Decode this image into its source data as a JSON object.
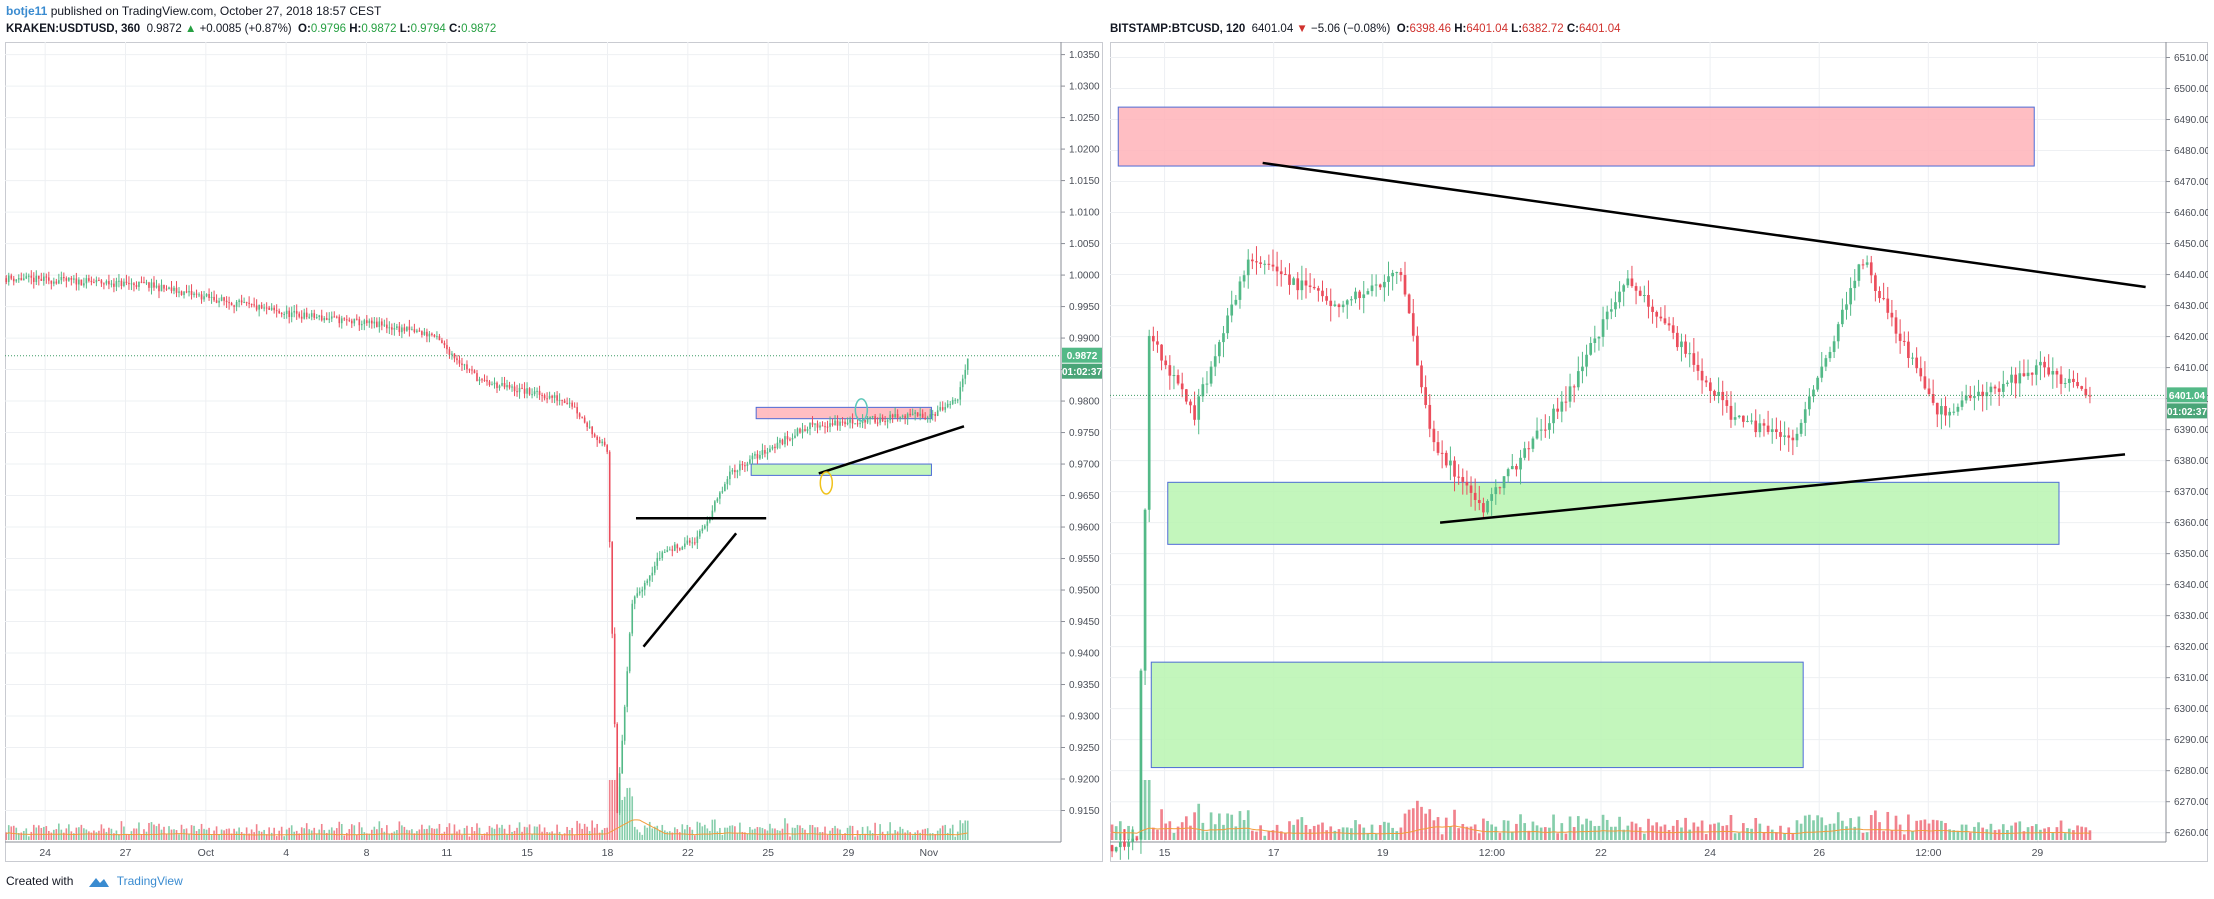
{
  "header": {
    "author": "botje11",
    "published_text": " published on TradingView.com, October 27, 2018 18:57 CEST"
  },
  "left": {
    "symbol": "KRAKEN:USDTUSD, 360",
    "last": "0.9872",
    "change_arrow": "▲",
    "change": "+0.0085 (+0.87%)",
    "o_label": "O:",
    "o": "0.9796",
    "h_label": "H:",
    "h": "0.9872",
    "l_label": "L:",
    "l": "0.9794",
    "c_label": "C:",
    "c": "0.9872",
    "price_badge": "0.9872",
    "time_badge": "01:02:37"
  },
  "right": {
    "symbol": "BITSTAMP:BTCUSD, 120",
    "last": "6401.04",
    "change_arrow": "▼",
    "change": "−5.06 (−0.08%)",
    "o_label": "O:",
    "o": "6398.46",
    "h_label": "H:",
    "h": "6401.04",
    "l_label": "L:",
    "l": "6382.72",
    "c_label": "C:",
    "c": "6401.04",
    "price_badge": "6401.04",
    "time_badge": "01:02:37"
  },
  "footer": {
    "created_with": "Created with",
    "brand": "TradingView"
  },
  "colors": {
    "up": "#53b987",
    "down": "#eb4d5c",
    "zone_red": "#ffb3b8",
    "zone_green": "#b8f5b0",
    "accent": "#3a8bd0"
  },
  "chart_data": [
    {
      "type": "candlestick",
      "title": "KRAKEN:USDTUSD, 360",
      "x_ticks": [
        "24",
        "27",
        "Oct",
        "4",
        "8",
        "11",
        "15",
        "18",
        "22",
        "25",
        "29",
        "Nov"
      ],
      "y_ticks": [
        "1.0350",
        "1.0300",
        "1.0250",
        "1.0200",
        "1.0150",
        "1.0100",
        "1.0050",
        "1.0000",
        "0.9950",
        "0.9900",
        "0.9850",
        "0.9800",
        "0.9750",
        "0.9700",
        "0.9650",
        "0.9600",
        "0.9550",
        "0.9500",
        "0.9450",
        "0.9400",
        "0.9350",
        "0.9300",
        "0.9250",
        "0.9200",
        "0.9150"
      ],
      "ylim": [
        0.91,
        1.037
      ],
      "grid": true,
      "close_segments": [
        {
          "from": 0,
          "to": 55,
          "start": 0.9995,
          "end": 0.9985
        },
        {
          "from": 55,
          "to": 110,
          "start": 0.9985,
          "end": 0.994
        },
        {
          "from": 110,
          "to": 150,
          "start": 0.994,
          "end": 0.992
        },
        {
          "from": 150,
          "to": 170,
          "start": 0.992,
          "end": 0.9905
        },
        {
          "from": 170,
          "to": 190,
          "start": 0.9905,
          "end": 0.983
        },
        {
          "from": 190,
          "to": 225,
          "start": 0.983,
          "end": 0.98
        },
        {
          "from": 225,
          "to": 240,
          "start": 0.98,
          "end": 0.972
        },
        {
          "from": 240,
          "to": 244,
          "start": 0.972,
          "end": 0.915
        },
        {
          "from": 244,
          "to": 250,
          "start": 0.915,
          "end": 0.948
        },
        {
          "from": 250,
          "to": 262,
          "start": 0.948,
          "end": 0.956
        },
        {
          "from": 262,
          "to": 276,
          "start": 0.956,
          "end": 0.958
        },
        {
          "from": 276,
          "to": 290,
          "start": 0.958,
          "end": 0.969
        },
        {
          "from": 290,
          "to": 320,
          "start": 0.969,
          "end": 0.976
        },
        {
          "from": 320,
          "to": 370,
          "start": 0.976,
          "end": 0.978
        },
        {
          "from": 370,
          "to": 380,
          "start": 0.978,
          "end": 0.98
        },
        {
          "from": 380,
          "to": 384,
          "start": 0.98,
          "end": 0.9872
        }
      ],
      "candle_count": 385,
      "last_price": 0.9872,
      "zones": [
        {
          "color": "red",
          "x0": 300,
          "x1": 370,
          "y0": 0.9772,
          "y1": 0.979
        },
        {
          "color": "green",
          "x0": 298,
          "x1": 370,
          "y0": 0.9682,
          "y1": 0.97
        }
      ],
      "trendlines": [
        {
          "x0": 252,
          "y0": 0.9614,
          "x1": 304,
          "y1": 0.9614
        },
        {
          "x0": 255,
          "y0": 0.941,
          "x1": 292,
          "y1": 0.959
        },
        {
          "x0": 325,
          "y0": 0.9685,
          "x1": 383,
          "y1": 0.976
        }
      ],
      "ellipses": [
        {
          "color": "teal",
          "x": 342,
          "y": 0.9786
        },
        {
          "color": "gold",
          "x": 328,
          "y": 0.967
        }
      ]
    },
    {
      "type": "candlestick",
      "title": "BITSTAMP:BTCUSD, 120",
      "x_ticks": [
        "15",
        "17",
        "19",
        "12:00",
        "22",
        "24",
        "26",
        "12:00",
        "29"
      ],
      "y_ticks": [
        "6510.00",
        "6500.00",
        "6490.00",
        "6480.00",
        "6470.00",
        "6460.00",
        "6450.00",
        "6440.00",
        "6430.00",
        "6420.00",
        "6410.00",
        "6400.00",
        "6390.00",
        "6380.00",
        "6370.00",
        "6360.00",
        "6350.00",
        "6340.00",
        "6330.00",
        "6320.00",
        "6310.00",
        "6300.00",
        "6290.00",
        "6280.00",
        "6270.00",
        "6260.00"
      ],
      "ylim": [
        6257,
        6515
      ],
      "grid": true,
      "close_segments": [
        {
          "from": 0,
          "to": 6,
          "start": 6256,
          "end": 6258
        },
        {
          "from": 6,
          "to": 9,
          "start": 6258,
          "end": 6420
        },
        {
          "from": 9,
          "to": 20,
          "start": 6420,
          "end": 6395
        },
        {
          "from": 20,
          "to": 33,
          "start": 6395,
          "end": 6445
        },
        {
          "from": 33,
          "to": 55,
          "start": 6445,
          "end": 6430
        },
        {
          "from": 55,
          "to": 70,
          "start": 6430,
          "end": 6440
        },
        {
          "from": 70,
          "to": 78,
          "start": 6440,
          "end": 6385
        },
        {
          "from": 78,
          "to": 90,
          "start": 6385,
          "end": 6365
        },
        {
          "from": 90,
          "to": 110,
          "start": 6365,
          "end": 6400
        },
        {
          "from": 110,
          "to": 125,
          "start": 6400,
          "end": 6440
        },
        {
          "from": 125,
          "to": 150,
          "start": 6440,
          "end": 6395
        },
        {
          "from": 150,
          "to": 165,
          "start": 6395,
          "end": 6385
        },
        {
          "from": 165,
          "to": 182,
          "start": 6385,
          "end": 6445
        },
        {
          "from": 182,
          "to": 200,
          "start": 6445,
          "end": 6395
        },
        {
          "from": 200,
          "to": 225,
          "start": 6395,
          "end": 6410
        },
        {
          "from": 225,
          "to": 237,
          "start": 6410,
          "end": 6401
        }
      ],
      "candle_count": 238,
      "last_price": 6401.04,
      "zones": [
        {
          "color": "red",
          "x0": 2,
          "x1": 224,
          "y0": 6475,
          "y1": 6494
        },
        {
          "color": "green",
          "x0": 14,
          "x1": 230,
          "y0": 6353,
          "y1": 6373
        },
        {
          "color": "green",
          "x0": 10,
          "x1": 168,
          "y0": 6281,
          "y1": 6315
        }
      ],
      "trendlines": [
        {
          "x0": 37,
          "y0": 6476,
          "x1": 251,
          "y1": 6436
        },
        {
          "x0": 80,
          "y0": 6360,
          "x1": 246,
          "y1": 6382
        }
      ]
    }
  ]
}
